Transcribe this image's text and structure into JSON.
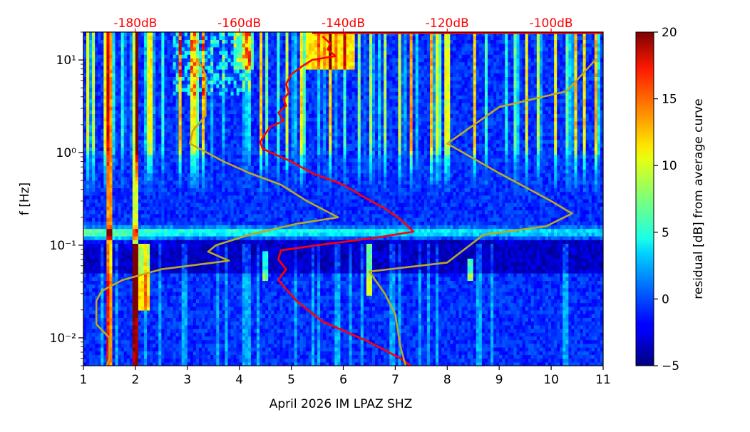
{
  "chart_data": {
    "type": "heatmap",
    "xlabel": "April 2026 IM LPAZ  SHZ",
    "ylabel": "f [Hz]",
    "xlim": [
      1,
      11
    ],
    "ylim": [
      0.005,
      20
    ],
    "y_scale": "log",
    "x_ticks": [
      "1",
      "2",
      "3",
      "4",
      "5",
      "6",
      "7",
      "8",
      "9",
      "10",
      "11"
    ],
    "y_ticks": [
      {
        "value": 0.01,
        "label": "10⁻²"
      },
      {
        "value": 0.1,
        "label": "10⁻¹"
      },
      {
        "value": 1,
        "label": "10⁰"
      },
      {
        "value": 10,
        "label": "10¹"
      }
    ],
    "top_axis": {
      "color": "#ff0000",
      "ticks": [
        {
          "x": 2,
          "label": "-180dB"
        },
        {
          "x": 4,
          "label": "-160dB"
        },
        {
          "x": 6,
          "label": "-140dB"
        },
        {
          "x": 8,
          "label": "-120dB"
        },
        {
          "x": 10,
          "label": "-100dB"
        }
      ]
    },
    "colorbar": {
      "label": "residual [dB] from average curve",
      "range": [
        -5,
        20
      ],
      "ticks": [
        "20",
        "15",
        "10",
        "5",
        "0",
        "−5"
      ],
      "colormap": "jet"
    },
    "series": [
      {
        "color": "#ff0000",
        "points": [
          [
            5.6,
            18
          ],
          [
            5.75,
            15
          ],
          [
            5.7,
            13
          ],
          [
            5.85,
            11
          ],
          [
            5.4,
            10
          ],
          [
            5.2,
            8.5
          ],
          [
            5.0,
            7
          ],
          [
            4.9,
            5.5
          ],
          [
            4.95,
            4.4
          ],
          [
            4.85,
            3.8
          ],
          [
            4.9,
            3.2
          ],
          [
            4.75,
            2.7
          ],
          [
            4.85,
            2.2
          ],
          [
            4.6,
            1.9
          ],
          [
            4.5,
            1.6
          ],
          [
            4.4,
            1.3
          ],
          [
            4.45,
            1.1
          ],
          [
            4.7,
            0.95
          ],
          [
            5.0,
            0.8
          ],
          [
            5.4,
            0.6
          ],
          [
            6.0,
            0.45
          ],
          [
            6.4,
            0.33
          ],
          [
            6.8,
            0.25
          ],
          [
            7.1,
            0.19
          ],
          [
            7.35,
            0.14
          ],
          [
            6.6,
            0.12
          ],
          [
            5.5,
            0.1
          ],
          [
            4.8,
            0.088
          ],
          [
            4.75,
            0.07
          ],
          [
            4.9,
            0.055
          ],
          [
            4.75,
            0.042
          ],
          [
            5.1,
            0.025
          ],
          [
            5.6,
            0.015
          ],
          [
            6.5,
            0.009
          ],
          [
            7.1,
            0.006
          ],
          [
            7.3,
            0.005
          ]
        ]
      },
      {
        "color": "#ff0000",
        "points": [
          [
            5.4,
            19.5
          ],
          [
            11,
            19.5
          ]
        ]
      },
      {
        "color": "#bbaa22",
        "points": [
          [
            3.2,
            10
          ],
          [
            3.35,
            7
          ],
          [
            3.35,
            2.5
          ],
          [
            3.1,
            1.7
          ],
          [
            3.05,
            1.25
          ],
          [
            3.7,
            0.8
          ],
          [
            4.2,
            0.6
          ],
          [
            4.8,
            0.45
          ],
          [
            5.3,
            0.3
          ],
          [
            5.9,
            0.2
          ],
          [
            5.1,
            0.17
          ],
          [
            4.2,
            0.13
          ],
          [
            3.55,
            0.1
          ],
          [
            3.4,
            0.085
          ],
          [
            3.8,
            0.068
          ],
          [
            2.5,
            0.055
          ],
          [
            1.75,
            0.042
          ],
          [
            1.35,
            0.032
          ],
          [
            1.25,
            0.025
          ],
          [
            1.25,
            0.014
          ],
          [
            1.5,
            0.01
          ],
          [
            1.5,
            0.006
          ],
          [
            1.45,
            0.005
          ]
        ]
      },
      {
        "color": "#bbaa22",
        "points": [
          [
            10.85,
            10
          ],
          [
            10.3,
            4.6
          ],
          [
            9.0,
            3.1
          ],
          [
            8.0,
            1.25
          ],
          [
            9.0,
            0.6
          ],
          [
            10.0,
            0.3
          ],
          [
            10.4,
            0.22
          ],
          [
            9.9,
            0.16
          ],
          [
            8.7,
            0.13
          ],
          [
            8.0,
            0.065
          ],
          [
            6.5,
            0.052
          ],
          [
            6.8,
            0.03
          ],
          [
            7.0,
            0.018
          ],
          [
            7.1,
            0.008
          ],
          [
            7.2,
            0.005
          ]
        ]
      }
    ]
  }
}
